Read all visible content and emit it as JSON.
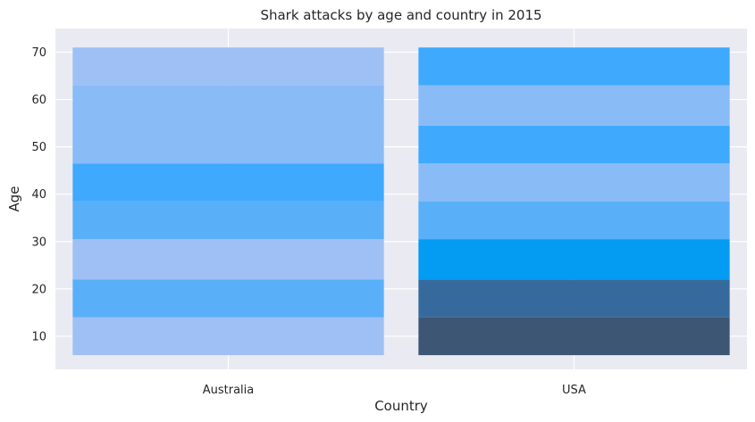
{
  "chart_data": {
    "type": "heatmap",
    "title": "Shark attacks by age and country in 2015",
    "xlabel": "Country",
    "ylabel": "Age",
    "categories": [
      "Australia",
      "USA"
    ],
    "ylim": [
      3,
      75
    ],
    "yticks": [
      10,
      20,
      30,
      40,
      50,
      60,
      70
    ],
    "grid": true,
    "bins": [
      {
        "country": "Australia",
        "age_min": 6,
        "age_max": 14,
        "color": "#9ec0f5"
      },
      {
        "country": "Australia",
        "age_min": 14,
        "age_max": 22,
        "color": "#5aaff9"
      },
      {
        "country": "Australia",
        "age_min": 22,
        "age_max": 30.5,
        "color": "#9ec0f5"
      },
      {
        "country": "Australia",
        "age_min": 30.5,
        "age_max": 38.5,
        "color": "#5aaff9"
      },
      {
        "country": "Australia",
        "age_min": 38.5,
        "age_max": 46.5,
        "color": "#3ea9fd"
      },
      {
        "country": "Australia",
        "age_min": 46.5,
        "age_max": 63,
        "color": "#89bbf6"
      },
      {
        "country": "Australia",
        "age_min": 63,
        "age_max": 71,
        "color": "#9ec0f5"
      },
      {
        "country": "USA",
        "age_min": 6,
        "age_max": 14,
        "color": "#3d5673"
      },
      {
        "country": "USA",
        "age_min": 14,
        "age_max": 22,
        "color": "#366a9c"
      },
      {
        "country": "USA",
        "age_min": 22,
        "age_max": 30.5,
        "color": "#039cf2"
      },
      {
        "country": "USA",
        "age_min": 30.5,
        "age_max": 38.5,
        "color": "#5aaff9"
      },
      {
        "country": "USA",
        "age_min": 38.5,
        "age_max": 46.5,
        "color": "#89bbf6"
      },
      {
        "country": "USA",
        "age_min": 46.5,
        "age_max": 54.5,
        "color": "#3ea9fd"
      },
      {
        "country": "USA",
        "age_min": 54.5,
        "age_max": 63,
        "color": "#89bbf6"
      },
      {
        "country": "USA",
        "age_min": 63,
        "age_max": 71,
        "color": "#3ea9fd"
      }
    ]
  }
}
